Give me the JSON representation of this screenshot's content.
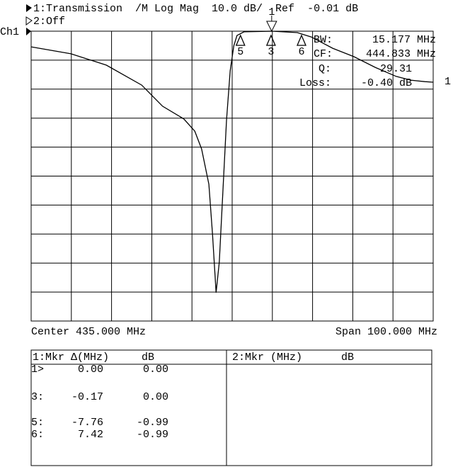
{
  "header": {
    "line1": "1:Transmission  /M Log Mag  10.0 dB/  Ref  -0.01 dB",
    "line2": "2:Off",
    "channel": "Ch1"
  },
  "chart_data": {
    "type": "line",
    "x": [
      385,
      394.9,
      403.7,
      412.5,
      417.7,
      423.0,
      425.7,
      427.4,
      429.2,
      430.1,
      431.0,
      431.8,
      432.7,
      433.6,
      434.5,
      435.4,
      436.2,
      438.0,
      444.9,
      451.2,
      454.7,
      460.0,
      465.3,
      470.6,
      475.8,
      479.4,
      482.9,
      485
    ],
    "series": [
      {
        "color": "#000000",
        "values": [
          -5.4,
          -7.8,
          -11.7,
          -18.6,
          -25.9,
          -30.3,
          -34.5,
          -40.6,
          -52.8,
          -69.9,
          -90.2,
          -79.7,
          -55.3,
          -30.8,
          -13.7,
          -5.1,
          -1.5,
          -0.2,
          0,
          -0.5,
          -2.0,
          -5.9,
          -8.8,
          -12.5,
          -15.6,
          -16.9,
          -17.4,
          -17.6
        ]
      }
    ],
    "xlim": [
      385,
      485
    ],
    "ylim": [
      -100,
      0
    ],
    "xticks": [
      385,
      395,
      405,
      415,
      425,
      435,
      445,
      455,
      465,
      475,
      485
    ],
    "yticks": [
      -100,
      -90,
      -80,
      -70,
      -60,
      -50,
      -40,
      -30,
      -20,
      -10,
      0
    ],
    "grid": true,
    "markers": [
      {
        "label": "1",
        "x": 444.83
      },
      {
        "label": "3",
        "x": 444.66
      },
      {
        "label": "5",
        "x": 437.07
      },
      {
        "label": "6",
        "x": 452.25
      }
    ],
    "trace_label": "1",
    "center_label": "Center 435.000 MHz",
    "span_label": "Span 100.000 MHz"
  },
  "stats": [
    [
      "BW:",
      "15.177 MHz"
    ],
    [
      "CF:",
      "444.833 MHz"
    ],
    [
      "Q:",
      "29.31"
    ],
    [
      "Loss:",
      "-0.40 dB"
    ]
  ],
  "table1": {
    "header": [
      "1:Mkr Δ(MHz)",
      "dB"
    ],
    "rows": [
      [
        "1>",
        "0.00",
        "0.00"
      ],
      [
        "3:",
        "-0.17",
        "0.00"
      ],
      [
        "5:",
        "-7.76",
        "-0.99"
      ],
      [
        "6:",
        "7.42",
        "-0.99"
      ]
    ]
  },
  "table2": {
    "header": [
      "2:Mkr (MHz)",
      "dB"
    ]
  }
}
